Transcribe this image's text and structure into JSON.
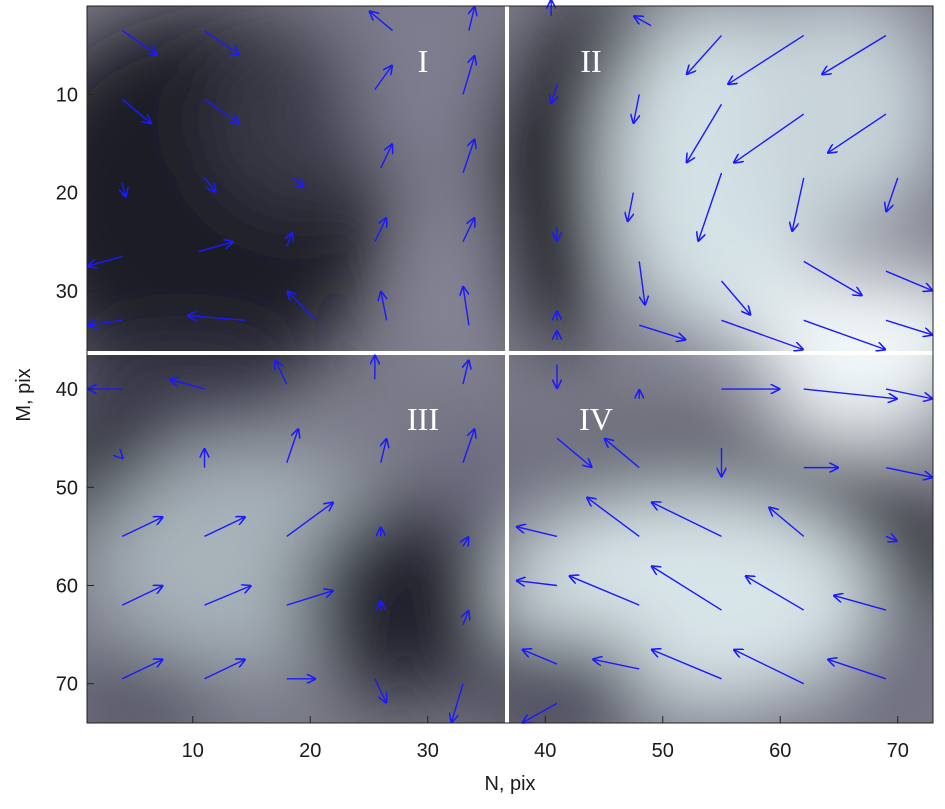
{
  "chart_data": {
    "type": "quiver",
    "xlabel": "N, pix",
    "ylabel": "M, pix",
    "xlim": [
      1,
      73
    ],
    "ylim": [
      1,
      74
    ],
    "y_reversed": true,
    "x_ticks": [
      10,
      20,
      30,
      40,
      50,
      60,
      70
    ],
    "y_ticks": [
      10,
      20,
      30,
      40,
      50,
      60,
      70
    ],
    "background": "grayscale intensity map",
    "arrow_color": "#1a1aff",
    "divider_color": "#ffffff",
    "divider_x": 37.5,
    "divider_y": 36,
    "quadrant_labels": [
      {
        "text": "I",
        "x": 30,
        "y": 6
      },
      {
        "text": "II",
        "x": 45,
        "y": 6
      },
      {
        "text": "III",
        "x": 30,
        "y": 45
      },
      {
        "text": "IV",
        "x": 45,
        "y": 45
      }
    ],
    "arrows": [
      [
        4,
        3.5,
        7,
        6
      ],
      [
        11,
        3.5,
        14,
        6
      ],
      [
        27,
        3.5,
        25,
        1.5
      ],
      [
        33.5,
        3.5,
        34,
        1
      ],
      [
        4,
        10.5,
        6.5,
        13
      ],
      [
        11,
        10.5,
        14,
        13
      ],
      [
        25.5,
        9.5,
        27,
        7
      ],
      [
        33,
        10,
        34,
        6
      ],
      [
        4,
        19,
        4.3,
        20.5
      ],
      [
        11,
        18.5,
        12,
        20
      ],
      [
        18.5,
        18.5,
        19.5,
        19.5
      ],
      [
        26,
        17.5,
        27,
        15
      ],
      [
        33,
        18,
        34,
        14.5
      ],
      [
        4,
        26.5,
        1,
        27.5
      ],
      [
        10.5,
        26,
        13.5,
        25
      ],
      [
        18,
        25.5,
        18.5,
        24
      ],
      [
        25.5,
        25,
        26.5,
        22.5
      ],
      [
        33,
        25,
        34,
        22.5
      ],
      [
        4,
        33,
        1,
        33.5
      ],
      [
        14.5,
        33,
        9.5,
        32.5
      ],
      [
        20.5,
        33,
        18,
        30
      ],
      [
        26.5,
        33,
        26,
        30
      ],
      [
        33.5,
        33.5,
        33,
        29.5
      ],
      [
        40.5,
        2,
        40.5,
        0.3
      ],
      [
        49,
        3,
        47.5,
        2
      ],
      [
        55,
        4,
        52,
        8
      ],
      [
        62,
        4,
        55.5,
        9
      ],
      [
        69,
        4,
        63.5,
        8
      ],
      [
        41,
        9,
        40.5,
        11
      ],
      [
        48,
        10,
        47.5,
        13
      ],
      [
        55,
        11,
        52,
        17
      ],
      [
        62,
        12,
        56,
        17
      ],
      [
        69,
        12,
        64,
        16
      ],
      [
        41,
        23.5,
        41,
        25
      ],
      [
        47.5,
        20,
        47,
        23
      ],
      [
        55,
        18,
        53,
        25
      ],
      [
        62,
        18.5,
        61,
        24
      ],
      [
        70,
        18.5,
        69,
        22
      ],
      [
        41,
        33,
        41,
        32
      ],
      [
        48,
        27,
        48.5,
        31.5
      ],
      [
        55,
        29,
        57.5,
        32.5
      ],
      [
        62,
        27,
        67,
        30.5
      ],
      [
        69,
        28,
        73,
        30
      ],
      [
        41,
        35,
        41,
        34
      ],
      [
        48,
        33.5,
        52,
        35
      ],
      [
        55,
        33,
        62,
        36
      ],
      [
        62,
        33,
        69,
        36
      ],
      [
        69,
        33,
        73,
        34.5
      ],
      [
        41,
        37.5,
        41,
        40
      ],
      [
        48,
        41,
        48,
        40
      ],
      [
        55,
        40,
        60,
        40
      ],
      [
        62,
        40,
        70,
        41
      ],
      [
        69,
        40,
        73,
        41
      ],
      [
        41,
        45,
        44,
        48
      ],
      [
        48,
        48,
        45,
        45
      ],
      [
        55,
        46,
        55,
        49
      ],
      [
        62,
        48,
        65,
        48
      ],
      [
        69,
        48,
        73,
        49
      ],
      [
        41,
        55,
        37.5,
        54
      ],
      [
        48,
        55,
        43.5,
        51
      ],
      [
        55,
        55,
        49,
        51.5
      ],
      [
        62,
        55,
        59,
        52
      ],
      [
        69,
        55,
        70,
        55.5
      ],
      [
        41,
        60,
        37.5,
        59.5
      ],
      [
        48,
        62,
        42,
        59
      ],
      [
        55,
        62.5,
        49,
        58
      ],
      [
        62,
        62.5,
        57,
        59
      ],
      [
        69,
        62.5,
        64.5,
        61
      ],
      [
        41,
        68,
        38,
        66.5
      ],
      [
        48,
        68.5,
        44,
        67.5
      ],
      [
        55,
        69.5,
        49,
        66.5
      ],
      [
        62,
        70,
        56,
        66.5
      ],
      [
        69,
        69.5,
        64,
        67.5
      ],
      [
        41,
        72,
        38,
        74
      ],
      [
        4,
        40,
        1,
        40
      ],
      [
        11,
        40,
        8,
        39
      ],
      [
        18,
        39.5,
        17,
        37
      ],
      [
        25.5,
        39,
        25.5,
        36.5
      ],
      [
        33,
        39.5,
        33.5,
        37
      ],
      [
        4,
        47,
        4,
        47
      ],
      [
        11,
        48,
        11,
        46
      ],
      [
        18,
        47.5,
        19,
        44
      ],
      [
        26,
        47.5,
        26.5,
        45
      ],
      [
        33,
        47.5,
        34,
        44
      ],
      [
        4,
        55,
        7.5,
        53
      ],
      [
        11,
        55,
        14.5,
        53
      ],
      [
        18,
        55,
        22,
        51.5
      ],
      [
        26,
        55,
        26,
        54
      ],
      [
        33,
        56,
        33.5,
        55
      ],
      [
        4,
        62,
        7.5,
        60
      ],
      [
        11,
        62,
        15,
        60
      ],
      [
        18,
        62,
        22,
        60.5
      ],
      [
        26,
        62.5,
        26,
        61.5
      ],
      [
        33,
        64,
        33.5,
        62.5
      ],
      [
        4,
        69.5,
        7.5,
        67.5
      ],
      [
        11,
        69.5,
        14.5,
        67.5
      ],
      [
        18,
        69.5,
        20.5,
        69.5
      ],
      [
        25.5,
        69.5,
        26.5,
        72
      ],
      [
        33,
        70,
        32,
        74
      ]
    ]
  }
}
